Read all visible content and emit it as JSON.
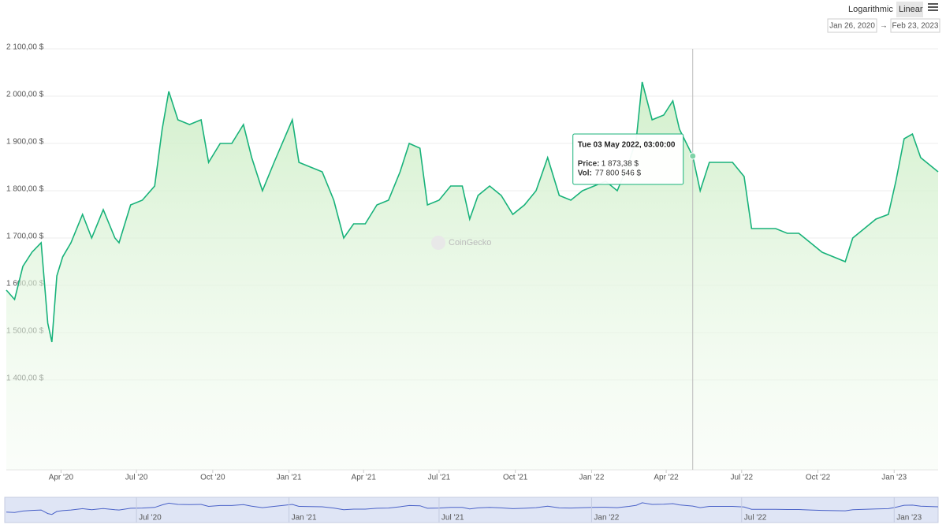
{
  "chart_data": {
    "type": "line",
    "controls": {
      "log": "Logarithmic",
      "linear": "Linear",
      "from": "Jan 26, 2020",
      "arrow": "→",
      "to": "Feb 23, 2023"
    },
    "watermark": "CoinGecko",
    "xlim": [
      "2020-01-26",
      "2023-02-23"
    ],
    "ylim": [
      1210,
      2100
    ],
    "yticks": [
      {
        "value": 1400,
        "label": "1 400,00 $"
      },
      {
        "value": 1500,
        "label": "1 500,00 $"
      },
      {
        "value": 1600,
        "label": "1 600,00 $"
      },
      {
        "value": 1700,
        "label": "1 700,00 $"
      },
      {
        "value": 1800,
        "label": "1 800,00 $"
      },
      {
        "value": 1900,
        "label": "1 900,00 $"
      },
      {
        "value": 2000,
        "label": "2 000,00 $"
      },
      {
        "value": 2100,
        "label": "2 100,00 $"
      }
    ],
    "xticks": [
      {
        "value": "2020-04-01",
        "label": "Apr '20"
      },
      {
        "value": "2020-07-01",
        "label": "Jul '20"
      },
      {
        "value": "2020-10-01",
        "label": "Oct '20"
      },
      {
        "value": "2021-01-01",
        "label": "Jan '21"
      },
      {
        "value": "2021-04-01",
        "label": "Apr '21"
      },
      {
        "value": "2021-07-01",
        "label": "Jul '21"
      },
      {
        "value": "2021-10-01",
        "label": "Oct '21"
      },
      {
        "value": "2022-01-01",
        "label": "Jan '22"
      },
      {
        "value": "2022-04-01",
        "label": "Apr '22"
      },
      {
        "value": "2022-07-01",
        "label": "Jul '22"
      },
      {
        "value": "2022-10-01",
        "label": "Oct '22"
      },
      {
        "value": "2023-01-01",
        "label": "Jan '23"
      }
    ],
    "navigator_xticks": [
      {
        "value": "2020-07-01",
        "label": "Jul '20"
      },
      {
        "value": "2021-01-01",
        "label": "Jan '21"
      },
      {
        "value": "2021-07-01",
        "label": "Jul '21"
      },
      {
        "value": "2022-01-01",
        "label": "Jan '22"
      },
      {
        "value": "2022-07-01",
        "label": "Jul '22"
      },
      {
        "value": "2023-01-01",
        "label": "Jan '23"
      }
    ],
    "color": "#18b27a",
    "x": [
      "2020-01-26",
      "2020-02-05",
      "2020-02-15",
      "2020-02-26",
      "2020-03-08",
      "2020-03-16",
      "2020-03-21",
      "2020-03-27",
      "2020-04-03",
      "2020-04-13",
      "2020-04-27",
      "2020-05-08",
      "2020-05-22",
      "2020-06-05",
      "2020-06-10",
      "2020-06-24",
      "2020-07-08",
      "2020-07-23",
      "2020-08-01",
      "2020-08-09",
      "2020-08-20",
      "2020-09-03",
      "2020-09-17",
      "2020-09-26",
      "2020-10-10",
      "2020-10-24",
      "2020-11-07",
      "2020-11-17",
      "2020-11-30",
      "2020-12-14",
      "2021-01-05",
      "2021-01-13",
      "2021-01-27",
      "2021-02-10",
      "2021-02-24",
      "2021-03-08",
      "2021-03-20",
      "2021-04-03",
      "2021-04-17",
      "2021-05-01",
      "2021-05-15",
      "2021-05-26",
      "2021-06-08",
      "2021-06-17",
      "2021-07-01",
      "2021-07-15",
      "2021-07-29",
      "2021-08-07",
      "2021-08-17",
      "2021-08-31",
      "2021-09-14",
      "2021-09-28",
      "2021-10-12",
      "2021-10-26",
      "2021-11-09",
      "2021-11-23",
      "2021-12-07",
      "2021-12-21",
      "2022-01-04",
      "2022-01-18",
      "2022-02-01",
      "2022-02-15",
      "2022-02-24",
      "2022-03-03",
      "2022-03-15",
      "2022-03-29",
      "2022-04-09",
      "2022-04-17",
      "2022-05-03",
      "2022-05-12",
      "2022-05-23",
      "2022-06-06",
      "2022-06-20",
      "2022-07-04",
      "2022-07-13",
      "2022-07-28",
      "2022-08-11",
      "2022-08-25",
      "2022-09-08",
      "2022-09-22",
      "2022-10-06",
      "2022-10-20",
      "2022-11-03",
      "2022-11-12",
      "2022-11-26",
      "2022-12-10",
      "2022-12-25",
      "2023-01-03",
      "2023-01-13",
      "2023-01-23",
      "2023-02-02",
      "2023-02-23"
    ],
    "values": [
      1590,
      1570,
      1640,
      1670,
      1690,
      1520,
      1480,
      1620,
      1660,
      1690,
      1750,
      1700,
      1760,
      1700,
      1690,
      1770,
      1780,
      1810,
      1930,
      2010,
      1950,
      1940,
      1950,
      1860,
      1900,
      1900,
      1940,
      1870,
      1800,
      1860,
      1950,
      1860,
      1850,
      1840,
      1780,
      1700,
      1730,
      1730,
      1770,
      1780,
      1840,
      1900,
      1890,
      1770,
      1780,
      1810,
      1810,
      1740,
      1790,
      1810,
      1790,
      1750,
      1770,
      1800,
      1870,
      1790,
      1780,
      1800,
      1810,
      1820,
      1800,
      1860,
      1910,
      2030,
      1950,
      1960,
      1990,
      1930,
      1873.38,
      1800,
      1860,
      1860,
      1860,
      1830,
      1720,
      1720,
      1720,
      1710,
      1710,
      1690,
      1670,
      1660,
      1650,
      1700,
      1720,
      1740,
      1750,
      1820,
      1910,
      1920,
      1870,
      1840
    ],
    "tooltip": {
      "x": "2022-05-03",
      "date": "Tue 03 May 2022, 03:00:00",
      "price_label": "Price:",
      "price": {
        "value": 1873.38,
        "label": "1 873,38 $"
      },
      "vol_label": "Vol:",
      "vol": {
        "value": 77800546,
        "label": "77 800 546 $"
      }
    }
  }
}
